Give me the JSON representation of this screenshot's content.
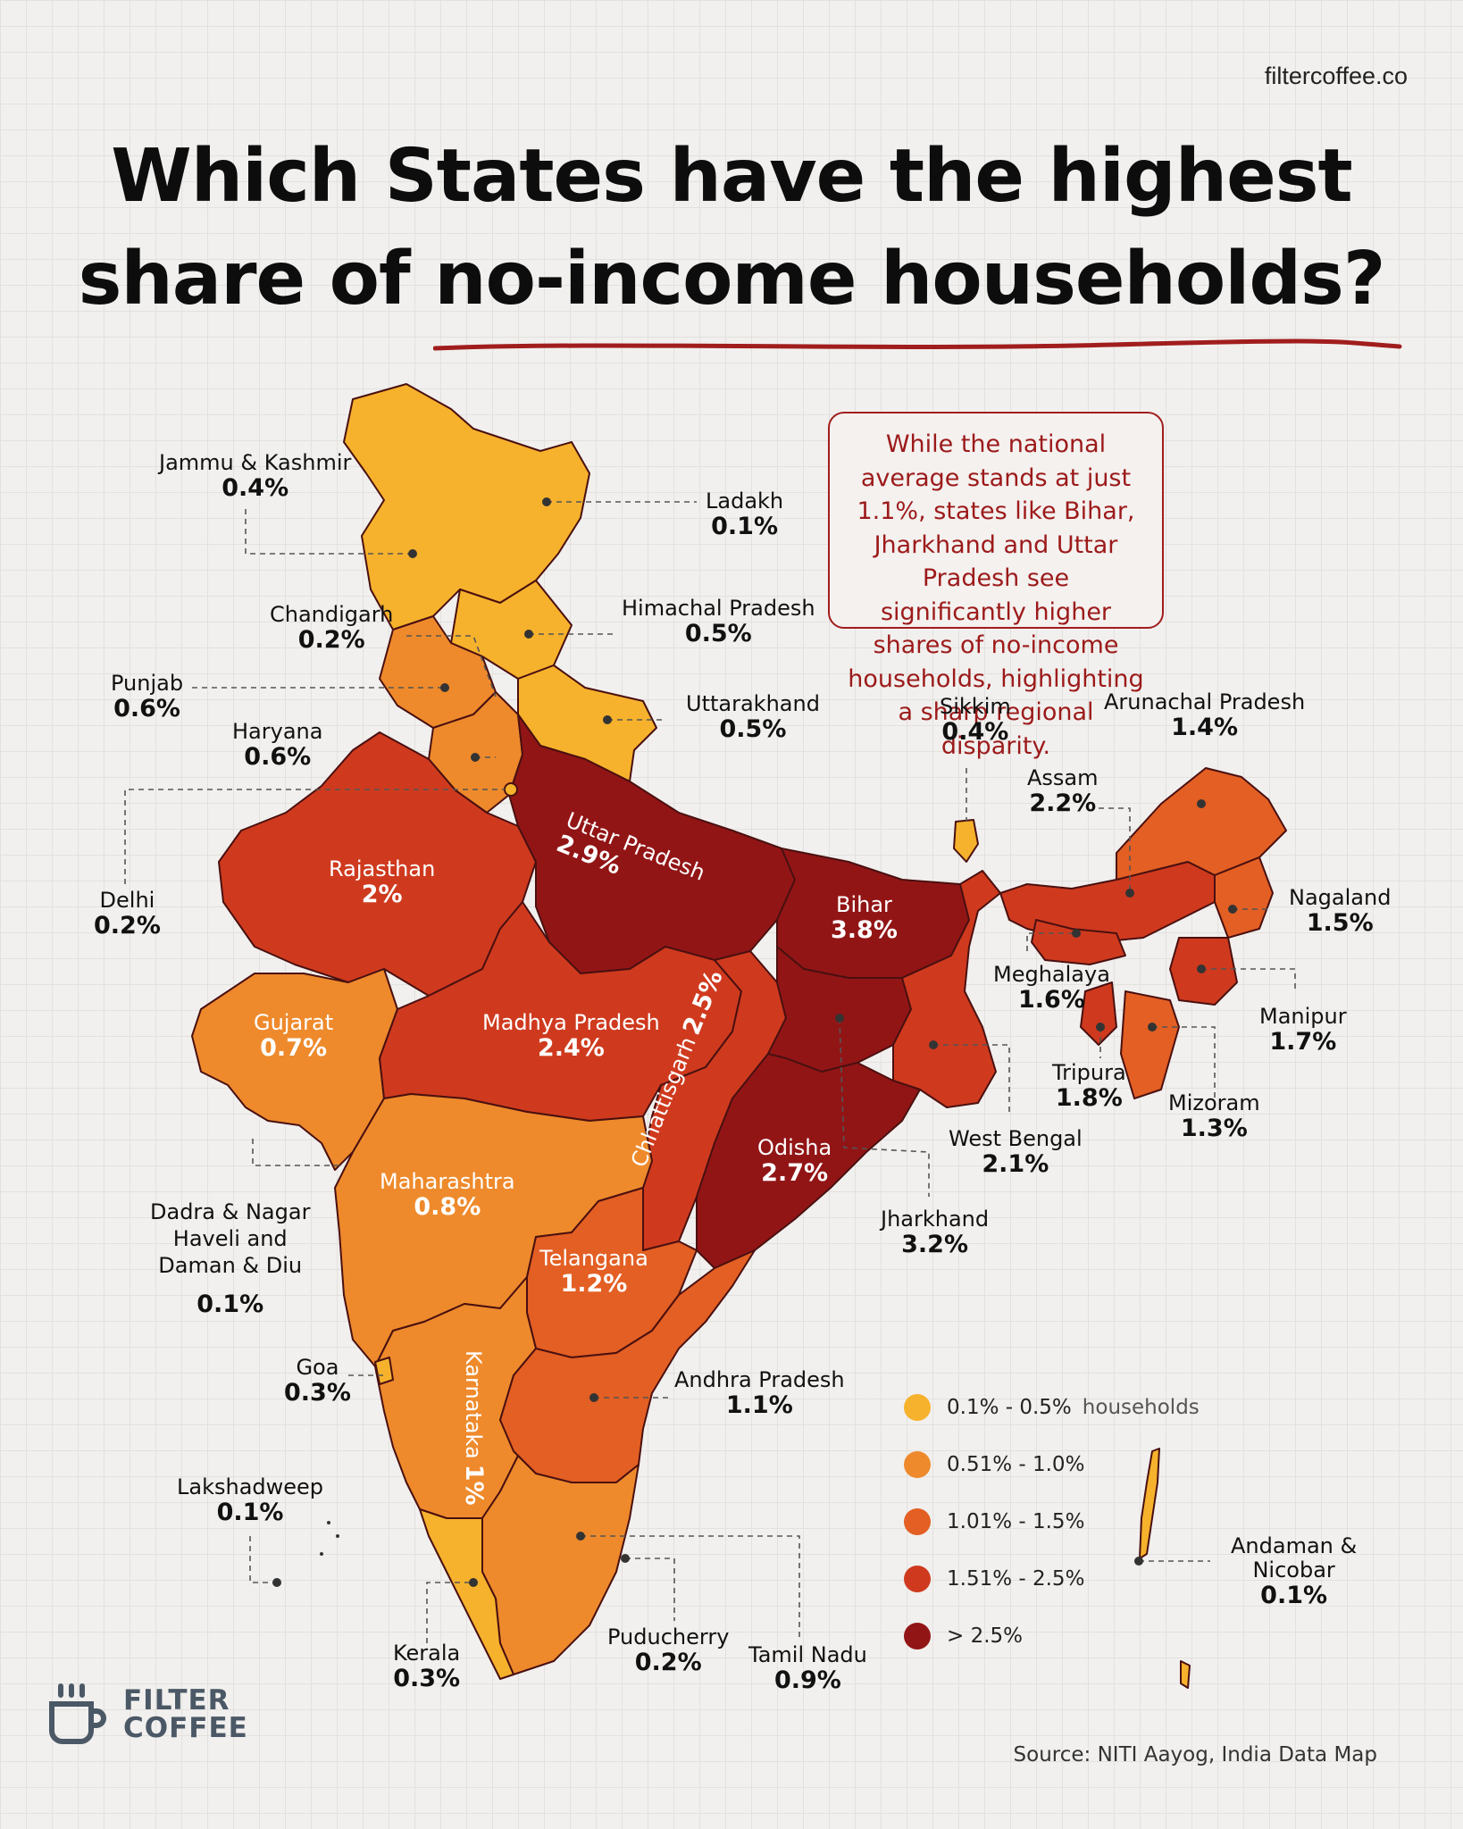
{
  "site": "filtercoffee.co",
  "title_line1": "Which States have the highest",
  "title_line2": "share of no-income households?",
  "note": "While the national average stands at just 1.1%, states like Bihar, Jharkhand and Uttar Pradesh see significantly higher shares of no-income households, highlighting a sharp regional disparity.",
  "colors": {
    "bin1": "#f6b22c",
    "bin2": "#ee8a2c",
    "bin3": "#e35f23",
    "bin4": "#cf3a1e",
    "bin5": "#921516",
    "accent": "#a11d1d"
  },
  "regions": {
    "jk": {
      "name": "Jammu & Kashmir",
      "value": "0.4%"
    },
    "ladakh": {
      "name": "Ladakh",
      "value": "0.1%"
    },
    "hp": {
      "name": "Himachal Pradesh",
      "value": "0.5%"
    },
    "chandigarh": {
      "name": "Chandigarh",
      "value": "0.2%"
    },
    "punjab": {
      "name": "Punjab",
      "value": "0.6%"
    },
    "haryana": {
      "name": "Haryana",
      "value": "0.6%"
    },
    "uttarakhand": {
      "name": "Uttarakhand",
      "value": "0.5%"
    },
    "delhi": {
      "name": "Delhi",
      "value": "0.2%"
    },
    "up": {
      "name": "Uttar Pradesh",
      "value": "2.9%"
    },
    "rajasthan": {
      "name": "Rajasthan",
      "value": "2%"
    },
    "bihar": {
      "name": "Bihar",
      "value": "3.8%"
    },
    "sikkim": {
      "name": "Sikkim",
      "value": "0.4%"
    },
    "arunachal": {
      "name": "Arunachal Pradesh",
      "value": "1.4%"
    },
    "assam": {
      "name": "Assam",
      "value": "2.2%"
    },
    "nagaland": {
      "name": "Nagaland",
      "value": "1.5%"
    },
    "meghalaya": {
      "name": "Meghalaya",
      "value": "1.6%"
    },
    "manipur": {
      "name": "Manipur",
      "value": "1.7%"
    },
    "tripura": {
      "name": "Tripura",
      "value": "1.8%"
    },
    "mizoram": {
      "name": "Mizoram",
      "value": "1.3%"
    },
    "wb": {
      "name": "West Bengal",
      "value": "2.1%"
    },
    "jharkhand": {
      "name": "Jharkhand",
      "value": "3.2%"
    },
    "gujarat": {
      "name": "Gujarat",
      "value": "0.7%"
    },
    "mp": {
      "name": "Madhya Pradesh",
      "value": "2.4%"
    },
    "chhattisgarh": {
      "name": "Chhattisgarh",
      "value": "2.5%"
    },
    "odisha": {
      "name": "Odisha",
      "value": "2.7%"
    },
    "dnh": {
      "name": "Dadra & Nagar Haveli and Daman & Diu",
      "value": "0.1%"
    },
    "maharashtra": {
      "name": "Maharashtra",
      "value": "0.8%"
    },
    "telangana": {
      "name": "Telangana",
      "value": "1.2%"
    },
    "goa": {
      "name": "Goa",
      "value": "0.3%"
    },
    "karnataka": {
      "name": "Karnataka",
      "value": "1%"
    },
    "ap": {
      "name": "Andhra Pradesh",
      "value": "1.1%"
    },
    "lakshadweep": {
      "name": "Lakshadweep",
      "value": "0.1%"
    },
    "kerala": {
      "name": "Kerala",
      "value": "0.3%"
    },
    "puducherry": {
      "name": "Puducherry",
      "value": "0.2%"
    },
    "tn": {
      "name": "Tamil Nadu",
      "value": "0.9%"
    },
    "andaman": {
      "name": "Andaman & Nicobar",
      "value": "0.1%"
    }
  },
  "legend": [
    {
      "label": "0.1% - 0.5%",
      "unit": "households"
    },
    {
      "label": "0.51% - 1.0%"
    },
    {
      "label": "1.01% - 1.5%"
    },
    {
      "label": "1.51% - 2.5%"
    },
    {
      "label": "> 2.5%"
    }
  ],
  "source": "Source: NITI Aayog, India Data Map",
  "logo": {
    "line1": "FILTER",
    "line2": "COFFEE"
  }
}
